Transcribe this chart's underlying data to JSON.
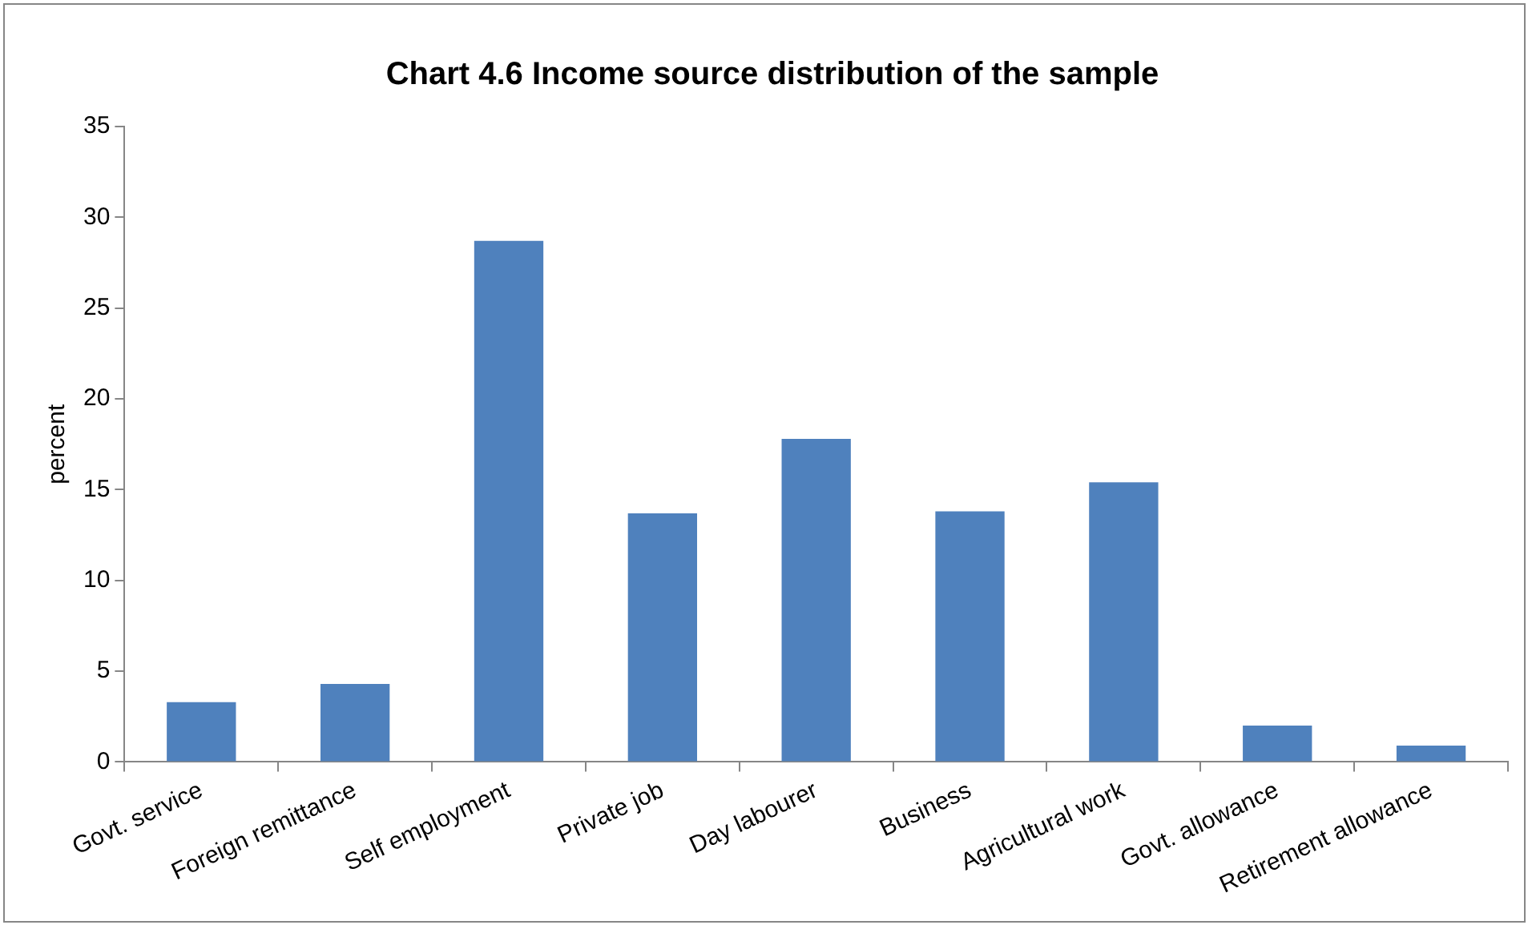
{
  "chart_data": {
    "type": "bar",
    "title": "Chart 4.6 Income source distribution of the sample",
    "ylabel": "percent",
    "categories": [
      "Govt. service",
      "Foreign remittance",
      "Self employment",
      "Private job",
      "Day labourer",
      "Business",
      "Agricultural work",
      "Govt. allowance",
      "Retirement allowance"
    ],
    "values": [
      3.3,
      4.3,
      28.7,
      13.7,
      17.8,
      13.8,
      15.4,
      2.0,
      0.9
    ],
    "color": "#4f81bd",
    "ylim": [
      0,
      35
    ],
    "yticks": [
      0,
      5,
      10,
      15,
      20,
      25,
      30,
      35
    ],
    "grid": false,
    "legend": false
  }
}
